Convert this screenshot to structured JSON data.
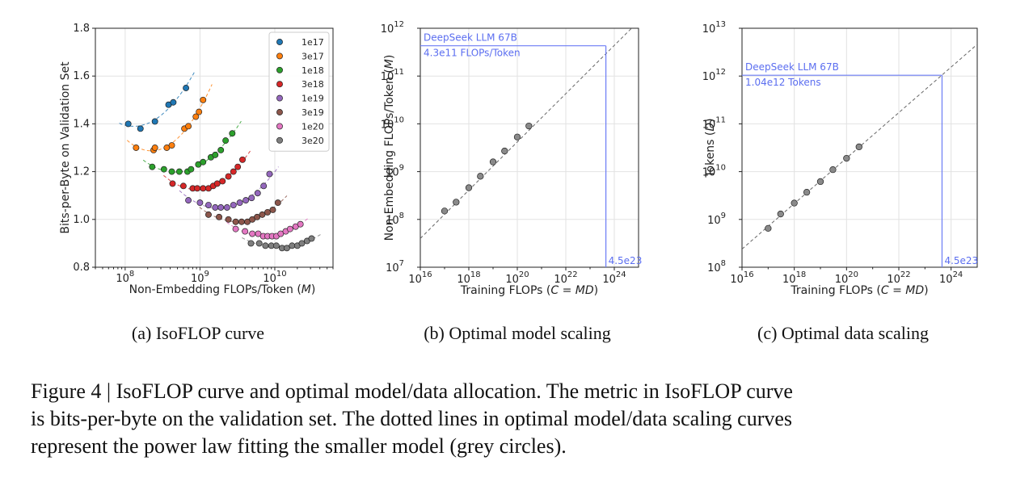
{
  "chart_data": [
    {
      "type": "scatter",
      "subcaption": "(a)  IsoFLOP curve",
      "xlabel": "Non-Embedding FLOPs/Token (M)",
      "ylabel": "Bits-per-Byte on Validation Set",
      "xscale": "log",
      "xlim": [
        40000000.0,
        60000000000.0
      ],
      "ylim": [
        0.8,
        1.8
      ],
      "x_ticks": [
        "10^8",
        "10^9",
        "10^10"
      ],
      "y_ticks": [
        "0.8",
        "1.0",
        "1.2",
        "1.4",
        "1.6",
        "1.8"
      ],
      "grid": true,
      "legend": "top-right",
      "series": [
        {
          "name": "1e17",
          "color": "#1f77b4",
          "x": [
            110000000.0,
            160000000.0,
            250000000.0,
            380000000.0,
            440000000.0,
            650000000.0
          ],
          "y": [
            1.4,
            1.38,
            1.41,
            1.48,
            1.49,
            1.55
          ]
        },
        {
          "name": "3e17",
          "color": "#ff7f0e",
          "x": [
            140000000.0,
            240000000.0,
            250000000.0,
            360000000.0,
            420000000.0,
            620000000.0,
            700000000.0,
            880000000.0,
            970000000.0,
            1100000000.0
          ],
          "y": [
            1.3,
            1.29,
            1.3,
            1.3,
            1.31,
            1.38,
            1.39,
            1.43,
            1.45,
            1.5
          ]
        },
        {
          "name": "1e18",
          "color": "#2ca02c",
          "x": [
            230000000.0,
            330000000.0,
            420000000.0,
            530000000.0,
            680000000.0,
            760000000.0,
            950000000.0,
            1100000000.0,
            1400000000.0,
            1600000000.0,
            1900000000.0,
            2200000000.0,
            2700000000.0
          ],
          "y": [
            1.22,
            1.21,
            1.2,
            1.2,
            1.2,
            1.21,
            1.23,
            1.24,
            1.26,
            1.27,
            1.29,
            1.33,
            1.36
          ]
        },
        {
          "name": "3e18",
          "color": "#d62728",
          "x": [
            430000000.0,
            600000000.0,
            800000000.0,
            920000000.0,
            1100000000.0,
            1300000000.0,
            1500000000.0,
            1700000000.0,
            2000000000.0,
            2400000000.0,
            2800000000.0,
            3200000000.0,
            3700000000.0
          ],
          "y": [
            1.15,
            1.14,
            1.13,
            1.13,
            1.13,
            1.13,
            1.14,
            1.15,
            1.16,
            1.18,
            1.2,
            1.22,
            1.25
          ]
        },
        {
          "name": "1e19",
          "color": "#9467bd",
          "x": [
            700000000.0,
            1000000000.0,
            1300000000.0,
            1600000000.0,
            1900000000.0,
            2300000000.0,
            2800000000.0,
            3400000000.0,
            4100000000.0,
            4900000000.0,
            5900000000.0,
            7100000000.0,
            8500000000.0
          ],
          "y": [
            1.08,
            1.07,
            1.06,
            1.05,
            1.05,
            1.05,
            1.06,
            1.07,
            1.08,
            1.09,
            1.11,
            1.14,
            1.19
          ]
        },
        {
          "name": "3e19",
          "color": "#8c564b",
          "x": [
            1300000000.0,
            1800000000.0,
            2400000000.0,
            3000000000.0,
            3600000000.0,
            4300000000.0,
            5000000000.0,
            5800000000.0,
            6800000000.0,
            8000000000.0,
            9400000000.0,
            11000000000.0
          ],
          "y": [
            1.02,
            1.01,
            1.0,
            0.99,
            0.99,
            0.99,
            1.0,
            1.01,
            1.02,
            1.03,
            1.04,
            1.07
          ]
        },
        {
          "name": "1e20",
          "color": "#e377c2",
          "x": [
            3000000000.0,
            4000000000.0,
            5000000000.0,
            6000000000.0,
            7000000000.0,
            8000000000.0,
            9200000000.0,
            10500000000.0,
            12000000000.0,
            14000000000.0,
            16000000000.0,
            19000000000.0,
            22000000000.0
          ],
          "y": [
            0.96,
            0.95,
            0.94,
            0.94,
            0.93,
            0.93,
            0.93,
            0.93,
            0.94,
            0.95,
            0.96,
            0.97,
            0.98
          ]
        },
        {
          "name": "3e20",
          "color": "#7f7f7f",
          "x": [
            4800000000.0,
            6200000000.0,
            7500000000.0,
            9000000000.0,
            10500000000.0,
            12500000000.0,
            14500000000.0,
            17000000000.0,
            20000000000.0,
            23000000000.0,
            27000000000.0,
            31000000000.0
          ],
          "y": [
            0.9,
            0.9,
            0.89,
            0.89,
            0.89,
            0.88,
            0.88,
            0.89,
            0.89,
            0.9,
            0.91,
            0.92
          ]
        }
      ]
    },
    {
      "type": "scatter",
      "subcaption": "(b)  Optimal model scaling",
      "xlabel": "Training FLOPs (C = MD)",
      "ylabel": "Non-Embedding FLOPs/Token (M)",
      "xscale": "log",
      "yscale": "log",
      "xlim": [
        1e+16,
        1e+25
      ],
      "ylim": [
        10000000.0,
        1000000000000.0
      ],
      "x_ticks": [
        "10^16",
        "10^18",
        "10^20",
        "10^22",
        "10^24"
      ],
      "y_ticks": [
        "10^7",
        "10^8",
        "10^9",
        "10^10",
        "10^11",
        "10^12"
      ],
      "grid": true,
      "points": {
        "x": [
          1e+17,
          3e+17,
          1e+18,
          3e+18,
          1e+19,
          3e+19,
          1e+20,
          3e+20
        ],
        "y": [
          150000000.0,
          230000000.0,
          460000000.0,
          800000000.0,
          1600000000.0,
          2700000000.0,
          5300000000.0,
          9000000000.0
        ]
      },
      "fit_line": {
        "x": [
          1e+16,
          1e+25
        ],
        "y": [
          40000000.0,
          1400000000000.0
        ]
      },
      "annotation": {
        "line1": "DeepSeek LLM 67B",
        "line2": "4.3e11 FLOPs/Token",
        "x_label": "4.5e23",
        "x": 4.5e+23,
        "y": 430000000000.0
      }
    },
    {
      "type": "scatter",
      "subcaption": "(c)  Optimal data scaling",
      "xlabel": "Training FLOPs (C = MD)",
      "ylabel": "Tokens (D)",
      "xscale": "log",
      "yscale": "log",
      "xlim": [
        1e+16,
        1e+25
      ],
      "ylim": [
        100000000.0,
        10000000000000.0
      ],
      "x_ticks": [
        "10^16",
        "10^18",
        "10^20",
        "10^22",
        "10^24"
      ],
      "y_ticks": [
        "10^8",
        "10^9",
        "10^10",
        "10^11",
        "10^12",
        "10^13"
      ],
      "grid": true,
      "points": {
        "x": [
          1e+17,
          3e+17,
          1e+18,
          3e+18,
          1e+19,
          3e+19,
          1e+20,
          3e+20
        ],
        "y": [
          650000000.0,
          1300000000.0,
          2200000000.0,
          3700000000.0,
          6200000000.0,
          11000000000.0,
          19000000000.0,
          33000000000.0
        ]
      },
      "fit_line": {
        "x": [
          1e+16,
          1e+25
        ],
        "y": [
          240000000.0,
          4600000000000.0
        ]
      },
      "annotation": {
        "line1": "DeepSeek LLM 67B",
        "line2": "1.04e12 Tokens",
        "x_label": "4.5e23",
        "x": 4.5e+23,
        "y": 1040000000000.0
      }
    }
  ],
  "caption": {
    "line1": "Figure 4 | IsoFLOP curve and optimal model/data allocation. The metric in IsoFLOP curve",
    "line2": "is bits-per-byte on the validation set. The dotted lines in optimal model/data scaling curves",
    "line3": "represent the power law fitting the smaller model (grey circles)."
  }
}
